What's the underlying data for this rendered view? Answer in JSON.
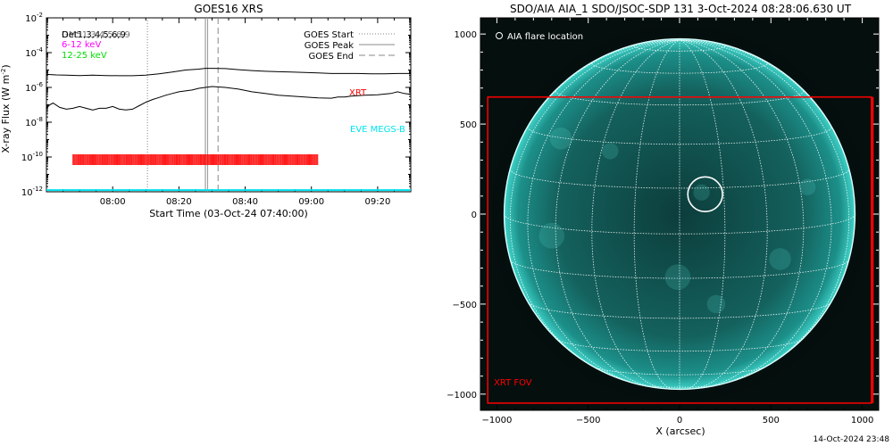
{
  "chart_data": [
    {
      "type": "line",
      "title": "GOES16 XRS",
      "xlabel": "Start Time (03-Oct-24 07:40:00)",
      "ylabel": "X-ray Flux (W m",
      "ylabel_sup": "-2",
      "ylabel_close": ")",
      "x_tick_labels": [
        "08:00",
        "08:20",
        "08:40",
        "09:00",
        "09:20"
      ],
      "x_tick_minutes": [
        20,
        40,
        60,
        80,
        100
      ],
      "xlim_minutes": [
        0,
        110
      ],
      "y_log_range": [
        -12,
        -2
      ],
      "y_tick_exponents": [
        -12,
        -10,
        -8,
        -6,
        -4,
        -2
      ],
      "legend_left": {
        "line1": "Det1,3,4,5,6,9",
        "line1_overlap": "GM51,3,4,5,6,9",
        "line2": "6-12 keV",
        "line3": "12-25 keV"
      },
      "legend_right": [
        {
          "label": "GOES Start",
          "style": "dotted"
        },
        {
          "label": "GOES Peak",
          "style": "solid"
        },
        {
          "label": "GOES End",
          "style": "dashed"
        }
      ],
      "annotations": {
        "xrt": "XRT",
        "eve": "EVE MEGS-B"
      },
      "goes_start_minute": 30.5,
      "goes_peak_minute": 48.0,
      "goes_end_minute": 50.2,
      "series": [
        {
          "name": "GOES long",
          "color": "#000000",
          "x": [
            0,
            3,
            6,
            10,
            14,
            18,
            22,
            26,
            30,
            34,
            38,
            42,
            46,
            48,
            50,
            54,
            58,
            62,
            66,
            70,
            74,
            78,
            82,
            86,
            90,
            94,
            98,
            102,
            106,
            110
          ],
          "log_y": [
            -5.25,
            -5.28,
            -5.3,
            -5.32,
            -5.3,
            -5.32,
            -5.33,
            -5.33,
            -5.3,
            -5.22,
            -5.12,
            -5.0,
            -4.95,
            -4.9,
            -4.9,
            -4.92,
            -4.98,
            -5.03,
            -5.07,
            -5.1,
            -5.12,
            -5.14,
            -5.17,
            -5.2,
            -5.2,
            -5.2,
            -5.22,
            -5.22,
            -5.2,
            -5.2
          ]
        },
        {
          "name": "GOES short",
          "color": "#000000",
          "x": [
            0,
            1,
            2,
            4,
            6,
            8,
            10,
            12,
            14,
            16,
            18,
            20,
            22,
            24,
            26,
            28,
            30,
            32,
            34,
            36,
            38,
            40,
            42,
            44,
            46,
            48,
            50,
            54,
            58,
            62,
            66,
            70,
            74,
            78,
            82,
            86,
            88,
            90,
            92,
            96,
            100,
            104,
            106,
            108,
            110
          ],
          "log_y": [
            -7.2,
            -7.0,
            -6.9,
            -7.15,
            -7.25,
            -7.2,
            -7.1,
            -7.2,
            -7.3,
            -7.2,
            -7.2,
            -7.1,
            -7.25,
            -7.3,
            -7.25,
            -7.05,
            -6.85,
            -6.7,
            -6.58,
            -6.45,
            -6.35,
            -6.25,
            -6.2,
            -6.15,
            -6.05,
            -6.0,
            -5.95,
            -6.0,
            -6.1,
            -6.25,
            -6.35,
            -6.45,
            -6.5,
            -6.55,
            -6.6,
            -6.62,
            -6.55,
            -6.55,
            -6.5,
            -6.45,
            -6.42,
            -6.35,
            -6.25,
            -6.35,
            -6.4
          ]
        },
        {
          "name": "EVE MEGS-B",
          "color": "#00e5ee",
          "x": [
            0,
            110
          ],
          "log_y": [
            -11.9,
            -11.9
          ]
        }
      ],
      "xrt_tick_range_minutes": [
        8,
        82
      ]
    },
    {
      "type": "scatter",
      "title": "SDO/AIA AIA_1 SDO/JSOC-SDP 131  3-Oct-2024 08:28:06.630 UT",
      "xlabel": "X (arcsec)",
      "ylabel": "",
      "x_ticks": [
        -1000,
        -500,
        0,
        500,
        1000
      ],
      "y_ticks": [
        -1000,
        -500,
        0,
        500,
        1000
      ],
      "xlim": [
        -1090,
        1090
      ],
      "ylim": [
        -1090,
        1090
      ],
      "legend": "AIA flare location",
      "fov_label": "XRT FOV",
      "solar_radius_arcsec": 960,
      "flare_location": {
        "x": 140,
        "y": 110,
        "radius": 95
      },
      "xrt_fov": {
        "x0": -1050,
        "x1": 1050,
        "y0": -1050,
        "y1": 650
      }
    }
  ],
  "footer": {
    "timestamp": "14-Oct-2024 23:48"
  },
  "colors": {
    "xrt": "#ff0000",
    "eve": "#00e5ee",
    "legend_line2": "#ff00ff",
    "legend_line3": "#00dd00",
    "sun": "#1fa6a0",
    "grid": "#ffffff"
  }
}
